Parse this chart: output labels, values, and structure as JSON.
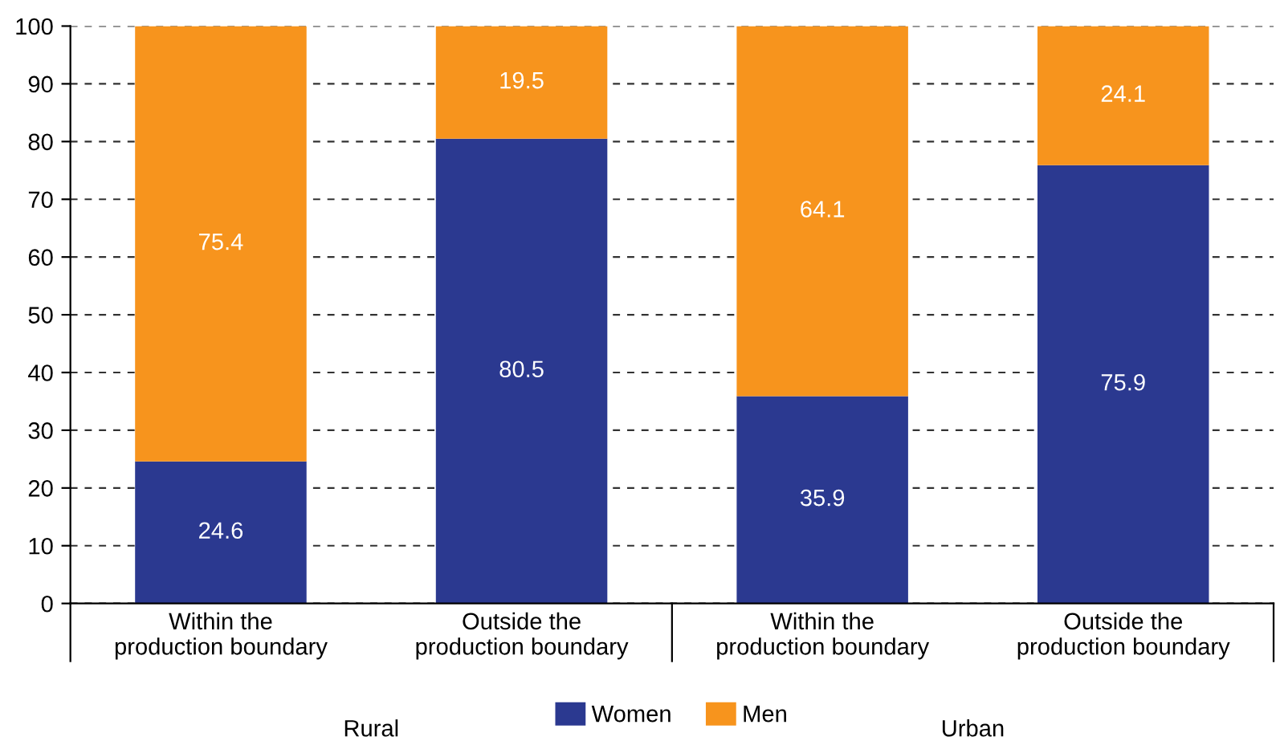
{
  "chart_data": {
    "type": "bar",
    "stacked": true,
    "categories": [
      "Within the\nproduction boundary",
      "Outside the\nproduction boundary",
      "Within the\nproduction boundary",
      "Outside the\nproduction boundary"
    ],
    "series": [
      {
        "name": "Women",
        "color": "#2b3990",
        "values": [
          24.6,
          80.5,
          35.9,
          75.9
        ]
      },
      {
        "name": "Men",
        "color": "#f7941d",
        "values": [
          75.4,
          19.5,
          64.1,
          24.1
        ]
      }
    ],
    "ylim": [
      0,
      100
    ],
    "yticks": [
      0,
      10,
      20,
      30,
      40,
      50,
      60,
      70,
      80,
      90,
      100
    ],
    "grid": "y",
    "legend": "bottom",
    "data_labels": true,
    "annotations": [
      "Rural",
      "Urban"
    ]
  }
}
